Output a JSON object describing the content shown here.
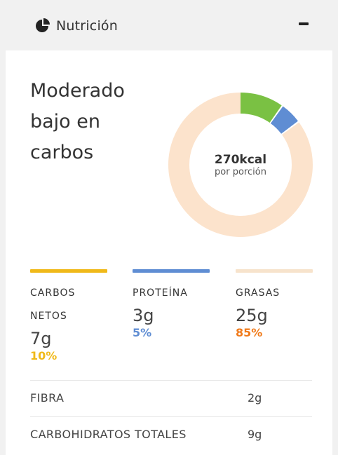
{
  "header": {
    "icon": "pie-chart-icon",
    "title": "Nutrición",
    "collapse_icon": "minus-icon"
  },
  "summary": {
    "diet_label": "Moderado bajo en carbos",
    "calories": "270kcal",
    "per_serving": "por porción"
  },
  "donut": {
    "segments": [
      {
        "name": "carbs",
        "percent": 10,
        "color": "#7ac143"
      },
      {
        "name": "protein",
        "percent": 5,
        "color": "#5f8dd3"
      },
      {
        "name": "fat",
        "percent": 85,
        "color": "#fce3cc"
      }
    ]
  },
  "macros": [
    {
      "label": "CARBOS NETOS",
      "value": "7g",
      "percent": "10%",
      "bar_color": "#f0b919",
      "pct_color": "#f0b919"
    },
    {
      "label": "PROTEÍNA",
      "value": "3g",
      "percent": "5%",
      "bar_color": "#5f8dd3",
      "pct_color": "#5f8dd3"
    },
    {
      "label": "GRASAS",
      "value": "25g",
      "percent": "85%",
      "bar_color": "#f7e3cc",
      "pct_color": "#f07a1a"
    }
  ],
  "details": [
    {
      "label": "FIBRA",
      "value": "2g"
    },
    {
      "label": "CARBOHIDRATOS TOTALES",
      "value": "9g"
    }
  ]
}
